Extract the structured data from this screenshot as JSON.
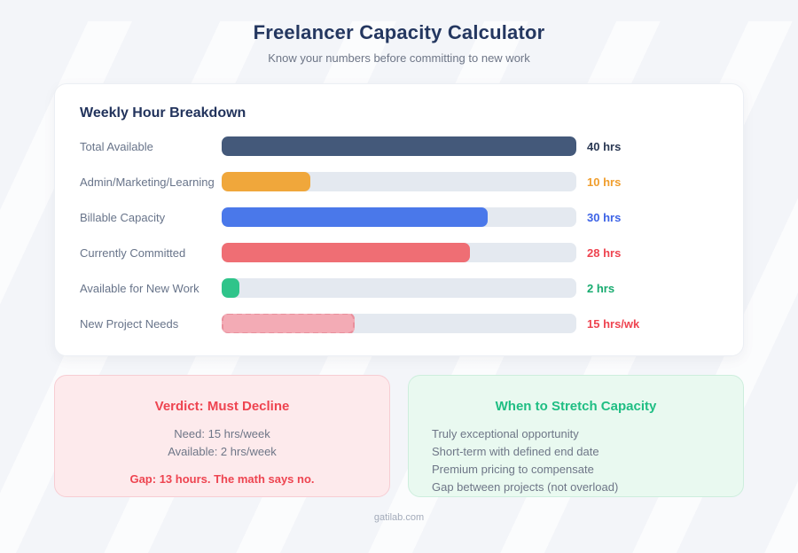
{
  "page": {
    "title": "Freelancer Capacity Calculator",
    "subtitle": "Know your numbers before committing to new work",
    "footer": "gatilab.com",
    "background_color": "#f3f5f9"
  },
  "chart_data": {
    "type": "bar",
    "orientation": "horizontal",
    "title": "Weekly Hour Breakdown",
    "xlim": [
      0,
      40
    ],
    "max": 40,
    "grid": false,
    "legend": false,
    "categories": [
      "Total Available",
      "Admin/Marketing/Learning",
      "Billable Capacity",
      "Currently Committed",
      "Available for New Work",
      "New Project Needs"
    ],
    "values": [
      40,
      10,
      30,
      28,
      2,
      15
    ],
    "value_labels": [
      "40 hrs",
      "10 hrs",
      "30 hrs",
      "28 hrs",
      "2 hrs",
      "15 hrs/wk"
    ],
    "track_color": "#e4e9f0",
    "rows": [
      {
        "label": "Total Available",
        "value": 40,
        "display": "40 hrs",
        "bar_color": "#44597a",
        "text_color": "#2b3954",
        "dashed": false
      },
      {
        "label": "Admin/Marketing/Learning",
        "value": 10,
        "display": "10 hrs",
        "bar_color": "#f0a73b",
        "text_color": "#f09e2d",
        "dashed": false
      },
      {
        "label": "Billable Capacity",
        "value": 30,
        "display": "30 hrs",
        "bar_color": "#4a78ea",
        "text_color": "#3d63e6",
        "dashed": false
      },
      {
        "label": "Currently Committed",
        "value": 28,
        "display": "28 hrs",
        "bar_color": "#ef6e74",
        "text_color": "#ee4450",
        "dashed": false
      },
      {
        "label": "Available for New Work",
        "value": 2,
        "display": "2 hrs",
        "bar_color": "#2fc48a",
        "text_color": "#17ab6f",
        "dashed": false
      },
      {
        "label": "New Project Needs",
        "value": 15,
        "display": "15 hrs/wk",
        "bar_color": "#f3abb5",
        "text_color": "#ee4450",
        "dashed": true,
        "border_color": "#e98f9c"
      }
    ]
  },
  "verdict_card": {
    "title": "Verdict: Must Decline",
    "title_color": "#ee4450",
    "need": "Need: 15 hrs/week",
    "available": "Available: 2 hrs/week",
    "gap": "Gap: 13 hours. The math says no.",
    "gap_color": "#ee4450"
  },
  "stretch_card": {
    "title": "When to Stretch Capacity",
    "title_color": "#1fbe83",
    "items": [
      "Truly exceptional opportunity",
      "Short-term with defined end date",
      "Premium pricing to compensate",
      "Gap between projects (not overload)"
    ]
  }
}
